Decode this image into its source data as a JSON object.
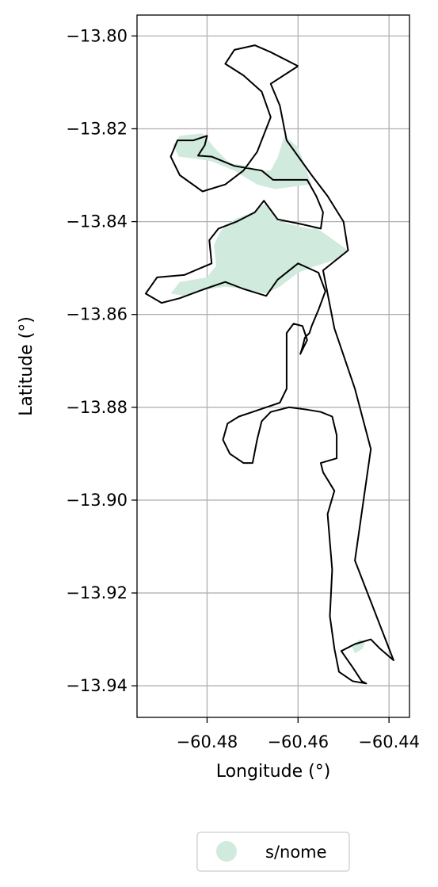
{
  "chart_data": {
    "type": "map",
    "xlabel": "Longitude (°)",
    "ylabel": "Latitude (°)",
    "xlim": [
      -60.4954,
      -60.4355
    ],
    "ylim": [
      -13.9468,
      -13.7955
    ],
    "grid": true,
    "x_ticks": [
      {
        "value": -60.48,
        "label": "−60.48"
      },
      {
        "value": -60.46,
        "label": "−60.46"
      },
      {
        "value": -60.44,
        "label": "−60.44"
      }
    ],
    "y_ticks": [
      {
        "value": -13.8,
        "label": "−13.80"
      },
      {
        "value": -13.82,
        "label": "−13.82"
      },
      {
        "value": -13.84,
        "label": "−13.84"
      },
      {
        "value": -13.86,
        "label": "−13.86"
      },
      {
        "value": -13.88,
        "label": "−13.88"
      },
      {
        "value": -13.9,
        "label": "−13.90"
      },
      {
        "value": -13.92,
        "label": "−13.92"
      },
      {
        "value": -13.94,
        "label": "−13.94"
      }
    ],
    "legend": {
      "placement": "bottom-center-outside",
      "entries": [
        {
          "label": "s/nome",
          "color": "#d0eadd"
        }
      ]
    },
    "fill_color": "#d0eadd",
    "outline_color": "#000000",
    "filled_regions": [
      [
        [
          -60.4862,
          -13.826
        ],
        [
          -60.4875,
          -13.8235
        ],
        [
          -60.486,
          -13.8215
        ],
        [
          -60.481,
          -13.821
        ],
        [
          -60.478,
          -13.8245
        ],
        [
          -60.475,
          -13.8275
        ],
        [
          -60.471,
          -13.828
        ],
        [
          -60.469,
          -13.829
        ],
        [
          -60.466,
          -13.829
        ],
        [
          -60.4645,
          -13.8262
        ],
        [
          -60.463,
          -13.8215
        ],
        [
          -60.46,
          -13.824
        ],
        [
          -60.457,
          -13.832
        ],
        [
          -60.4615,
          -13.8325
        ],
        [
          -60.465,
          -13.833
        ],
        [
          -60.469,
          -13.832
        ],
        [
          -60.474,
          -13.829
        ],
        [
          -60.479,
          -13.827
        ],
        [
          -60.482,
          -13.8265
        ]
      ],
      [
        [
          -60.488,
          -13.8555
        ],
        [
          -60.486,
          -13.853
        ],
        [
          -60.48,
          -13.852
        ],
        [
          -60.478,
          -13.8495
        ],
        [
          -60.4785,
          -13.845
        ],
        [
          -60.477,
          -13.842
        ],
        [
          -60.474,
          -13.8395
        ],
        [
          -60.47,
          -13.838
        ],
        [
          -60.467,
          -13.836
        ],
        [
          -60.464,
          -13.84
        ],
        [
          -60.46,
          -13.841
        ],
        [
          -60.455,
          -13.842
        ],
        [
          -60.449,
          -13.8462
        ],
        [
          -60.451,
          -13.848
        ],
        [
          -60.456,
          -13.8495
        ],
        [
          -60.46,
          -13.851
        ],
        [
          -60.464,
          -13.854
        ],
        [
          -60.467,
          -13.8555
        ],
        [
          -60.472,
          -13.8545
        ],
        [
          -60.476,
          -13.854
        ],
        [
          -60.481,
          -13.8548
        ],
        [
          -60.485,
          -13.856
        ]
      ],
      [
        [
          -60.457,
          -13.843
        ],
        [
          -60.4552,
          -13.842
        ],
        [
          -60.456,
          -13.8412
        ],
        [
          -60.4575,
          -13.8418
        ]
      ],
      [
        [
          -60.4475,
          -13.933
        ],
        [
          -60.4458,
          -13.932
        ],
        [
          -60.4452,
          -13.9305
        ],
        [
          -60.4465,
          -13.93
        ],
        [
          -60.4482,
          -13.9315
        ]
      ]
    ],
    "outline_paths": [
      [
        [
          -60.46,
          -13.8065
        ],
        [
          -60.466,
          -13.8103
        ],
        [
          -60.464,
          -13.815
        ],
        [
          -60.4625,
          -13.8225
        ],
        [
          -60.457,
          -13.83
        ],
        [
          -60.4535,
          -13.8345
        ],
        [
          -60.45,
          -13.84
        ],
        [
          -60.449,
          -13.8462
        ],
        [
          -60.4545,
          -13.8505
        ],
        [
          -60.452,
          -13.863
        ],
        [
          -60.4475,
          -13.876
        ],
        [
          -60.444,
          -13.889
        ],
        [
          -60.4475,
          -13.913
        ],
        [
          -60.439,
          -13.9345
        ],
        [
          -60.442,
          -13.932
        ],
        [
          -60.444,
          -13.93
        ],
        [
          -60.4475,
          -13.931
        ],
        [
          -60.4505,
          -13.9325
        ],
        [
          -60.448,
          -13.936
        ],
        [
          -60.446,
          -13.939
        ],
        [
          -60.445,
          -13.9395
        ],
        [
          -60.448,
          -13.939
        ],
        [
          -60.451,
          -13.937
        ],
        [
          -60.452,
          -13.932
        ],
        [
          -60.453,
          -13.925
        ],
        [
          -60.4525,
          -13.915
        ],
        [
          -60.4535,
          -13.903
        ],
        [
          -60.452,
          -13.898
        ],
        [
          -60.4545,
          -13.894
        ],
        [
          -60.455,
          -13.892
        ],
        [
          -60.4515,
          -13.891
        ],
        [
          -60.4515,
          -13.886
        ],
        [
          -60.4525,
          -13.882
        ],
        [
          -60.455,
          -13.881
        ],
        [
          -60.458,
          -13.8805
        ],
        [
          -60.462,
          -13.88
        ],
        [
          -60.466,
          -13.881
        ],
        [
          -60.468,
          -13.883
        ],
        [
          -60.469,
          -13.887
        ],
        [
          -60.47,
          -13.892
        ],
        [
          -60.472,
          -13.892
        ],
        [
          -60.475,
          -13.89
        ],
        [
          -60.4765,
          -13.887
        ],
        [
          -60.4755,
          -13.8835
        ],
        [
          -60.473,
          -13.882
        ],
        [
          -60.47,
          -13.881
        ],
        [
          -60.464,
          -13.879
        ],
        [
          -60.4625,
          -13.876
        ],
        [
          -60.4625,
          -13.87
        ],
        [
          -60.4625,
          -13.864
        ],
        [
          -60.461,
          -13.862
        ],
        [
          -60.459,
          -13.8625
        ],
        [
          -60.458,
          -13.8655
        ],
        [
          -60.4595,
          -13.8685
        ],
        [
          -60.459,
          -13.867
        ],
        [
          -60.4585,
          -13.865
        ],
        [
          -60.4575,
          -13.864
        ],
        [
          -60.457,
          -13.8625
        ],
        [
          -60.4555,
          -13.859
        ],
        [
          -60.454,
          -13.855
        ],
        [
          -60.4555,
          -13.851
        ],
        [
          -60.46,
          -13.849
        ],
        [
          -60.4645,
          -13.8525
        ],
        [
          -60.467,
          -13.856
        ],
        [
          -60.472,
          -13.8545
        ],
        [
          -60.476,
          -13.853
        ],
        [
          -60.4805,
          -13.8545
        ],
        [
          -60.486,
          -13.8565
        ],
        [
          -60.49,
          -13.8575
        ],
        [
          -60.4935,
          -13.8555
        ],
        [
          -60.491,
          -13.852
        ],
        [
          -60.485,
          -13.8515
        ],
        [
          -60.479,
          -13.849
        ],
        [
          -60.4795,
          -13.844
        ],
        [
          -60.4775,
          -13.8415
        ],
        [
          -60.4735,
          -13.84
        ],
        [
          -60.4695,
          -13.838
        ],
        [
          -60.4675,
          -13.8355
        ],
        [
          -60.4645,
          -13.8395
        ],
        [
          -60.4595,
          -13.8405
        ],
        [
          -60.455,
          -13.8415
        ],
        [
          -60.4545,
          -13.838
        ],
        [
          -60.456,
          -13.8345
        ],
        [
          -60.458,
          -13.831
        ],
        [
          -60.4625,
          -13.831
        ],
        [
          -60.4655,
          -13.831
        ],
        [
          -60.468,
          -13.829
        ],
        [
          -60.474,
          -13.828
        ],
        [
          -60.479,
          -13.826
        ],
        [
          -60.482,
          -13.8258
        ],
        [
          -60.4805,
          -13.8235
        ],
        [
          -60.48,
          -13.8215
        ],
        [
          -60.483,
          -13.8225
        ],
        [
          -60.4865,
          -13.8225
        ],
        [
          -60.488,
          -13.826
        ],
        [
          -60.486,
          -13.83
        ],
        [
          -60.481,
          -13.8335
        ],
        [
          -60.476,
          -13.832
        ],
        [
          -60.472,
          -13.829
        ],
        [
          -60.469,
          -13.825
        ],
        [
          -60.466,
          -13.8175
        ],
        [
          -60.468,
          -13.812
        ],
        [
          -60.472,
          -13.8085
        ],
        [
          -60.476,
          -13.806
        ],
        [
          -60.474,
          -13.803
        ],
        [
          -60.4695,
          -13.802
        ],
        [
          -60.466,
          -13.8035
        ],
        [
          -60.46,
          -13.8065
        ]
      ]
    ]
  }
}
